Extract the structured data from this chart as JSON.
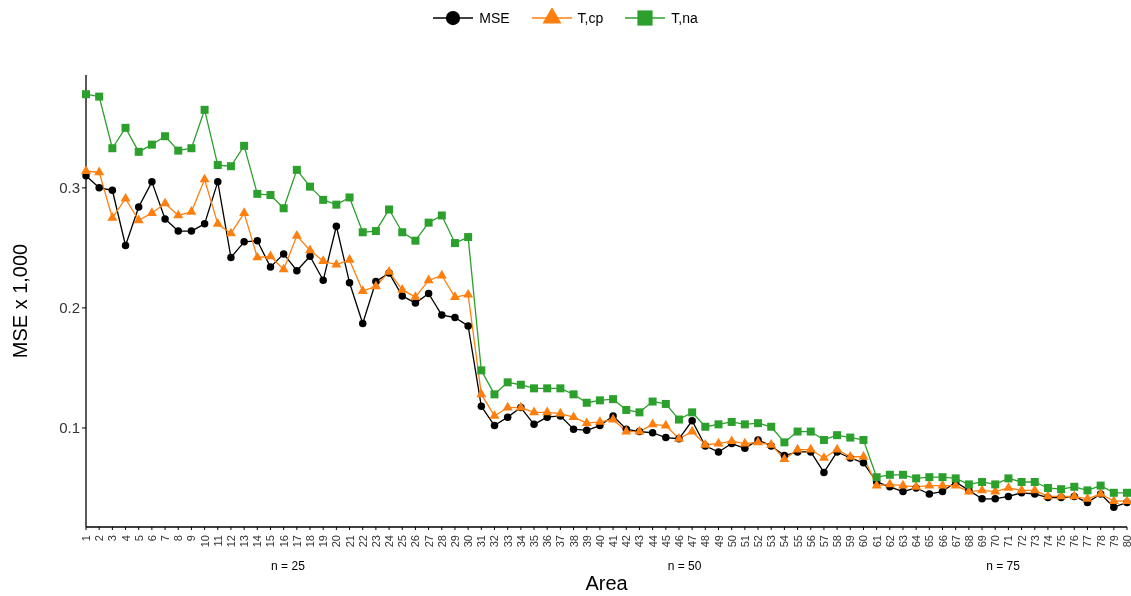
{
  "chart_data": {
    "type": "line",
    "xlabel": "Area",
    "ylabel": "MSE x 1,000",
    "legend": "top",
    "ylim": [
      0.0175,
      0.394
    ],
    "yticks": [
      0.1,
      0.2,
      0.3
    ],
    "categories": [
      "1",
      "2",
      "3",
      "4",
      "5",
      "6",
      "7",
      "8",
      "9",
      "10",
      "11",
      "12",
      "13",
      "14",
      "15",
      "16",
      "17",
      "18",
      "19",
      "20",
      "21",
      "22",
      "23",
      "24",
      "25",
      "26",
      "27",
      "28",
      "29",
      "30",
      "31",
      "32",
      "33",
      "34",
      "35",
      "36",
      "37",
      "38",
      "39",
      "40",
      "41",
      "42",
      "43",
      "44",
      "45",
      "46",
      "47",
      "48",
      "49",
      "50",
      "51",
      "52",
      "53",
      "54",
      "55",
      "56",
      "57",
      "58",
      "59",
      "60",
      "61",
      "62",
      "63",
      "64",
      "65",
      "66",
      "67",
      "68",
      "69",
      "70",
      "71",
      "72",
      "73",
      "74",
      "75",
      "76",
      "77",
      "78",
      "79",
      "80"
    ],
    "annotations": [
      "n = 25",
      "n = 50",
      "n = 75"
    ],
    "series": [
      {
        "name": "MSE",
        "color": "#000000",
        "marker": "circle",
        "values": [
          0.31,
          0.3,
          0.298,
          0.252,
          0.284,
          0.305,
          0.274,
          0.264,
          0.264,
          0.27,
          0.305,
          0.242,
          0.255,
          0.256,
          0.234,
          0.245,
          0.231,
          0.243,
          0.223,
          0.268,
          0.221,
          0.187,
          0.222,
          0.229,
          0.21,
          0.204,
          0.212,
          0.194,
          0.192,
          0.185,
          0.118,
          0.102,
          0.109,
          0.117,
          0.103,
          0.109,
          0.11,
          0.099,
          0.098,
          0.102,
          0.11,
          0.099,
          0.097,
          0.096,
          0.092,
          0.091,
          0.106,
          0.085,
          0.08,
          0.087,
          0.083,
          0.09,
          0.085,
          0.077,
          0.08,
          0.08,
          0.063,
          0.08,
          0.075,
          0.071,
          0.055,
          0.051,
          0.047,
          0.05,
          0.045,
          0.047,
          0.055,
          0.048,
          0.041,
          0.041,
          0.043,
          0.046,
          0.045,
          0.042,
          0.042,
          0.043,
          0.038,
          0.045,
          0.034,
          0.038
        ]
      },
      {
        "name": "T,cp",
        "color": "#ff7f0e",
        "marker": "triangle",
        "values": [
          0.314,
          0.313,
          0.275,
          0.291,
          0.273,
          0.279,
          0.287,
          0.277,
          0.28,
          0.307,
          0.27,
          0.262,
          0.279,
          0.242,
          0.243,
          0.232,
          0.26,
          0.248,
          0.239,
          0.236,
          0.24,
          0.214,
          0.218,
          0.23,
          0.215,
          0.209,
          0.223,
          0.227,
          0.209,
          0.211,
          0.128,
          0.11,
          0.117,
          0.117,
          0.113,
          0.113,
          0.112,
          0.109,
          0.104,
          0.105,
          0.107,
          0.097,
          0.097,
          0.103,
          0.102,
          0.091,
          0.097,
          0.086,
          0.087,
          0.089,
          0.087,
          0.088,
          0.086,
          0.074,
          0.082,
          0.082,
          0.075,
          0.082,
          0.076,
          0.076,
          0.052,
          0.053,
          0.052,
          0.051,
          0.052,
          0.052,
          0.052,
          0.047,
          0.048,
          0.047,
          0.05,
          0.048,
          0.048,
          0.043,
          0.043,
          0.043,
          0.041,
          0.045,
          0.039,
          0.039
        ]
      },
      {
        "name": "T,na",
        "color": "#2ca02c",
        "marker": "square",
        "values": [
          0.378,
          0.376,
          0.333,
          0.35,
          0.33,
          0.336,
          0.343,
          0.331,
          0.333,
          0.365,
          0.319,
          0.318,
          0.335,
          0.295,
          0.294,
          0.283,
          0.315,
          0.301,
          0.29,
          0.286,
          0.292,
          0.263,
          0.264,
          0.282,
          0.263,
          0.256,
          0.271,
          0.277,
          0.254,
          0.259,
          0.148,
          0.128,
          0.138,
          0.136,
          0.133,
          0.133,
          0.133,
          0.128,
          0.121,
          0.123,
          0.124,
          0.115,
          0.113,
          0.122,
          0.12,
          0.107,
          0.113,
          0.101,
          0.103,
          0.105,
          0.103,
          0.104,
          0.101,
          0.088,
          0.097,
          0.097,
          0.09,
          0.094,
          0.092,
          0.09,
          0.059,
          0.061,
          0.061,
          0.058,
          0.059,
          0.059,
          0.058,
          0.053,
          0.055,
          0.053,
          0.058,
          0.055,
          0.055,
          0.05,
          0.049,
          0.051,
          0.048,
          0.052,
          0.046,
          0.046
        ]
      }
    ]
  }
}
